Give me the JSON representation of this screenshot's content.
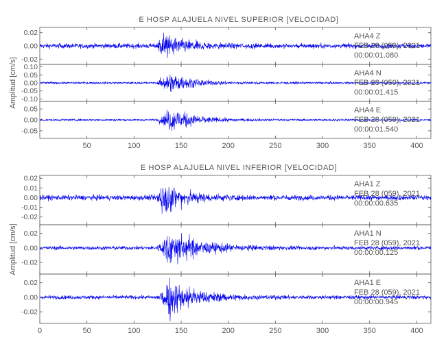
{
  "chart_data": [
    {
      "type": "line",
      "title": "E HOSP ALAJUELA NIVEL SUPERIOR [VELOCIDAD]",
      "ylabel": "Amplitud [cm/s]",
      "xlim": [
        0,
        415
      ],
      "xticks": [
        50,
        100,
        150,
        200,
        250,
        300,
        350,
        400
      ],
      "traces": [
        {
          "station": "AHA4",
          "component": "Z",
          "date": "FEB 28 (059), 2021",
          "time": "00:00:01.080",
          "ylim": [
            -0.028,
            0.028
          ],
          "yticks": [
            0.02,
            0.0,
            -0.02
          ],
          "ytick_labels": [
            "0.02",
            "0.00",
            "-0.02"
          ],
          "onset": 124,
          "noise": 0.0035,
          "peak": 0.022,
          "peak_at": 130,
          "decay": 22
        },
        {
          "station": "AHA4",
          "component": "N",
          "date": "FEB 28 (059), 2021",
          "time": "00:00:01.415",
          "ylim": [
            -0.115,
            0.115
          ],
          "yticks": [
            0.1,
            0.05,
            0.0,
            -0.05,
            -0.1
          ],
          "ytick_labels": [
            "0.10",
            "0.05",
            "0.00",
            "-0.05",
            "-0.10"
          ],
          "onset": 124,
          "noise": 0.006,
          "peak": 0.07,
          "peak_at": 138,
          "decay": 24
        },
        {
          "station": "AHA4",
          "component": "E",
          "date": "FEB 28 (059), 2021",
          "time": "00:00:01.540",
          "ylim": [
            -0.085,
            0.085
          ],
          "yticks": [
            0.05,
            0.0,
            -0.05
          ],
          "ytick_labels": [
            "0.05",
            "0.00",
            "-0.05"
          ],
          "onset": 124,
          "noise": 0.004,
          "peak": 0.065,
          "peak_at": 140,
          "decay": 24
        }
      ]
    },
    {
      "type": "line",
      "title": "E HOSP ALAJUELA NIVEL INFERIOR [VELOCIDAD]",
      "ylabel": "Amplitud [cm/s]",
      "xlim": [
        0,
        415
      ],
      "xticks": [
        0,
        50,
        100,
        150,
        200,
        250,
        300,
        350,
        400
      ],
      "traces": [
        {
          "station": "AHA1",
          "component": "Z",
          "date": "FEB 28 (059), 2021",
          "time": "00:00:00.635",
          "ylim": [
            -0.028,
            0.023
          ],
          "yticks": [
            0.02,
            0.01,
            0.0,
            -0.01,
            -0.02
          ],
          "ytick_labels": [
            "0.02",
            "0.01",
            "0.00",
            "-0.01",
            "-0.02"
          ],
          "onset": 124,
          "noise": 0.0025,
          "peak": 0.02,
          "peak_at": 130,
          "decay": 22
        },
        {
          "station": "AHA1",
          "component": "N",
          "date": "FEB 28 (059), 2021",
          "time": "00:00:00.125",
          "ylim": [
            -0.036,
            0.032
          ],
          "yticks": [
            0.02,
            0.0,
            -0.02
          ],
          "ytick_labels": [
            "0.02",
            "0.00",
            "-0.02"
          ],
          "onset": 124,
          "noise": 0.0025,
          "peak": 0.028,
          "peak_at": 138,
          "decay": 30
        },
        {
          "station": "AHA1",
          "component": "E",
          "date": "FEB 28 (059), 2021",
          "time": "00:00:00.945",
          "ylim": [
            -0.036,
            0.032
          ],
          "yticks": [
            0.02,
            0.0,
            -0.02
          ],
          "ytick_labels": [
            "0.02",
            "0.00",
            "-0.02"
          ],
          "onset": 124,
          "noise": 0.0025,
          "peak": 0.028,
          "peak_at": 138,
          "decay": 28
        }
      ]
    }
  ],
  "colors": {
    "trace": "#0000ee",
    "axis": "#555555",
    "text": "#555555",
    "background": "#ffffff"
  }
}
